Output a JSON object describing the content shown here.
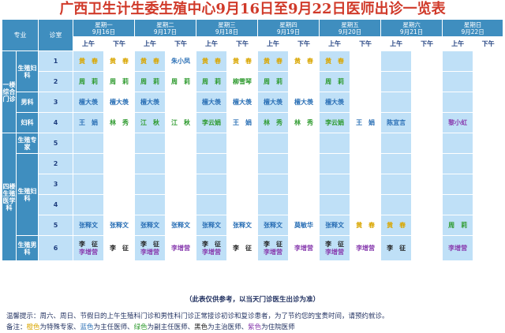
{
  "title": "广西卫生计生委生殖中心9月16日至9月22日医师出诊一览表",
  "header": {
    "specialty": "专业",
    "room": "诊室",
    "am": "上午",
    "pm": "下午",
    "days": [
      {
        "weekday": "星期一",
        "date": "9月16日"
      },
      {
        "weekday": "星期二",
        "date": "9月17日"
      },
      {
        "weekday": "星期三",
        "date": "9月18日"
      },
      {
        "weekday": "星期四",
        "date": "9月19日"
      },
      {
        "weekday": "星期五",
        "date": "9月20日"
      },
      {
        "weekday": "星期六",
        "date": "9月21日"
      },
      {
        "weekday": "星期日",
        "date": "9月22日"
      }
    ]
  },
  "labels": {
    "floor1": "一楼综合门诊",
    "floor4": "四楼生殖医学科",
    "repro_gyn": "生殖妇科",
    "andrology": "男科",
    "gynecology": "妇科",
    "repro_expert": "生殖专家",
    "repro_gyn2": "生殖妇科",
    "repro_andro": "生殖男科"
  },
  "rows": [
    {
      "room": "1",
      "cells": [
        {
          "t": "黄　春",
          "c": "yellow"
        },
        {
          "t": "黄　春",
          "c": "yellow"
        },
        {
          "t": "黄　春",
          "c": "yellow"
        },
        {
          "t": "朱小凤",
          "c": "blue"
        },
        {
          "t": "黄　春",
          "c": "yellow"
        },
        {
          "t": "黄　春",
          "c": "yellow"
        },
        {
          "t": "黄　春",
          "c": "yellow"
        },
        {
          "t": "黄　春",
          "c": "yellow"
        },
        {
          "t": "黄　春",
          "c": "yellow"
        },
        {
          "t": "",
          "c": ""
        },
        {
          "t": "",
          "c": ""
        },
        {
          "t": "",
          "c": ""
        },
        {
          "t": "",
          "c": ""
        },
        {
          "t": "",
          "c": ""
        }
      ]
    },
    {
      "room": "2",
      "cells": [
        {
          "t": "周　莉",
          "c": "green"
        },
        {
          "t": "周　莉",
          "c": "green"
        },
        {
          "t": "周　莉",
          "c": "green"
        },
        {
          "t": "周　莉",
          "c": "green"
        },
        {
          "t": "周　莉",
          "c": "green"
        },
        {
          "t": "柳雪琴",
          "c": "green"
        },
        {
          "t": "周　莉",
          "c": "green"
        },
        {
          "t": "",
          "c": ""
        },
        {
          "t": "周　莉",
          "c": "green"
        },
        {
          "t": "",
          "c": ""
        },
        {
          "t": "",
          "c": ""
        },
        {
          "t": "",
          "c": ""
        },
        {
          "t": "",
          "c": ""
        },
        {
          "t": "",
          "c": ""
        }
      ]
    },
    {
      "room": "3",
      "cells": [
        {
          "t": "檀大羡",
          "c": "blue"
        },
        {
          "t": "檀大羡",
          "c": "blue"
        },
        {
          "t": "檀大羡",
          "c": "blue"
        },
        {
          "t": "",
          "c": ""
        },
        {
          "t": "檀大羡",
          "c": "blue"
        },
        {
          "t": "檀大羡",
          "c": "blue"
        },
        {
          "t": "檀大羡",
          "c": "blue"
        },
        {
          "t": "檀大羡",
          "c": "blue"
        },
        {
          "t": "檀大羡",
          "c": "blue"
        },
        {
          "t": "",
          "c": ""
        },
        {
          "t": "",
          "c": ""
        },
        {
          "t": "",
          "c": ""
        },
        {
          "t": "",
          "c": ""
        },
        {
          "t": "",
          "c": ""
        }
      ]
    },
    {
      "room": "4",
      "cells": [
        {
          "t": "王　娟",
          "c": "blue"
        },
        {
          "t": "林　秀",
          "c": "green"
        },
        {
          "t": "江　秋",
          "c": "green"
        },
        {
          "t": "江　秋",
          "c": "green"
        },
        {
          "t": "李云娟",
          "c": "green"
        },
        {
          "t": "王　娟",
          "c": "blue"
        },
        {
          "t": "林　秀",
          "c": "green"
        },
        {
          "t": "林　秀",
          "c": "green"
        },
        {
          "t": "李云娟",
          "c": "green"
        },
        {
          "t": "王　娟",
          "c": "blue"
        },
        {
          "t": "陈宜言",
          "c": "blue"
        },
        {
          "t": "",
          "c": ""
        },
        {
          "t": "黎小虹",
          "c": "purple"
        },
        {
          "t": "",
          "c": ""
        }
      ]
    },
    {
      "room": "5",
      "cells": [
        {
          "t": "",
          "c": ""
        },
        {
          "t": "",
          "c": ""
        },
        {
          "t": "",
          "c": ""
        },
        {
          "t": "",
          "c": ""
        },
        {
          "t": "",
          "c": ""
        },
        {
          "t": "",
          "c": ""
        },
        {
          "t": "",
          "c": ""
        },
        {
          "t": "",
          "c": ""
        },
        {
          "t": "",
          "c": ""
        },
        {
          "t": "",
          "c": ""
        },
        {
          "t": "",
          "c": ""
        },
        {
          "t": "",
          "c": ""
        },
        {
          "t": "",
          "c": ""
        },
        {
          "t": "",
          "c": ""
        }
      ]
    },
    {
      "room": "2",
      "cells": [
        {
          "t": "",
          "c": ""
        },
        {
          "t": "",
          "c": ""
        },
        {
          "t": "",
          "c": ""
        },
        {
          "t": "",
          "c": ""
        },
        {
          "t": "",
          "c": ""
        },
        {
          "t": "",
          "c": ""
        },
        {
          "t": "",
          "c": ""
        },
        {
          "t": "",
          "c": ""
        },
        {
          "t": "",
          "c": ""
        },
        {
          "t": "",
          "c": ""
        },
        {
          "t": "",
          "c": ""
        },
        {
          "t": "",
          "c": ""
        },
        {
          "t": "",
          "c": ""
        },
        {
          "t": "",
          "c": ""
        }
      ]
    },
    {
      "room": "3",
      "cells": [
        {
          "t": "",
          "c": ""
        },
        {
          "t": "",
          "c": ""
        },
        {
          "t": "",
          "c": ""
        },
        {
          "t": "",
          "c": ""
        },
        {
          "t": "",
          "c": ""
        },
        {
          "t": "",
          "c": ""
        },
        {
          "t": "",
          "c": ""
        },
        {
          "t": "",
          "c": ""
        },
        {
          "t": "",
          "c": ""
        },
        {
          "t": "",
          "c": ""
        },
        {
          "t": "",
          "c": ""
        },
        {
          "t": "",
          "c": ""
        },
        {
          "t": "",
          "c": ""
        },
        {
          "t": "",
          "c": ""
        }
      ]
    },
    {
      "room": "4",
      "cells": [
        {
          "t": "",
          "c": ""
        },
        {
          "t": "",
          "c": ""
        },
        {
          "t": "",
          "c": ""
        },
        {
          "t": "",
          "c": ""
        },
        {
          "t": "",
          "c": ""
        },
        {
          "t": "",
          "c": ""
        },
        {
          "t": "",
          "c": ""
        },
        {
          "t": "",
          "c": ""
        },
        {
          "t": "",
          "c": ""
        },
        {
          "t": "",
          "c": ""
        },
        {
          "t": "",
          "c": ""
        },
        {
          "t": "",
          "c": ""
        },
        {
          "t": "",
          "c": ""
        },
        {
          "t": "",
          "c": ""
        }
      ]
    },
    {
      "room": "5",
      "cells": [
        {
          "t": "张释文",
          "c": "blue"
        },
        {
          "t": "张释文",
          "c": "blue"
        },
        {
          "t": "张释文",
          "c": "blue"
        },
        {
          "t": "张释文",
          "c": "blue"
        },
        {
          "t": "张释文",
          "c": "blue"
        },
        {
          "t": "张释文",
          "c": "blue"
        },
        {
          "t": "张释文",
          "c": "blue"
        },
        {
          "t": "莫敏华",
          "c": "blue"
        },
        {
          "t": "张释文",
          "c": "blue"
        },
        {
          "t": "黄　春",
          "c": "yellow"
        },
        {
          "t": "黄　春",
          "c": "yellow"
        },
        {
          "t": "",
          "c": ""
        },
        {
          "t": "周　莉",
          "c": "green"
        },
        {
          "t": "",
          "c": ""
        }
      ]
    },
    {
      "room": "6",
      "cells": [
        {
          "t": "李　征|李增营",
          "c": "black|purple"
        },
        {
          "t": "李　征",
          "c": "black"
        },
        {
          "t": "李　征|李增营",
          "c": "black|purple"
        },
        {
          "t": "李增营",
          "c": "purple"
        },
        {
          "t": "李　征|李增营",
          "c": "black|purple"
        },
        {
          "t": "李　征",
          "c": "black"
        },
        {
          "t": "李　征|李增营",
          "c": "black|purple"
        },
        {
          "t": "李增营",
          "c": "purple"
        },
        {
          "t": "李　征|李增营",
          "c": "black|purple"
        },
        {
          "t": "李增营",
          "c": "purple"
        },
        {
          "t": "李　征",
          "c": "black"
        },
        {
          "t": "",
          "c": ""
        },
        {
          "t": "李增营",
          "c": "purple"
        },
        {
          "t": "",
          "c": ""
        }
      ]
    }
  ],
  "note": "（此表仅供参考，以当天门诊医生出诊为准）",
  "tip": "温馨提示：周六、周日、节假日的上午生殖科门诊和男性科门诊正常接诊初诊和复诊患者，为了节约您的宝贵时间，请预约就诊。",
  "legend": {
    "prefix": "备注：",
    "items": [
      {
        "color_word": "橙色",
        "text": "为特殊专家、",
        "hex": "#d9a600"
      },
      {
        "color_word": "蓝色",
        "text": "为主任医师、",
        "hex": "#2a6fb5"
      },
      {
        "color_word": "绿色",
        "text": "为副主任医师、",
        "hex": "#2e9a2e"
      },
      {
        "color_word": "黑色",
        "text": "为主治医师、",
        "hex": "#222222"
      },
      {
        "color_word": "紫色",
        "text": "为住院医师",
        "hex": "#8a3fb0"
      }
    ]
  }
}
